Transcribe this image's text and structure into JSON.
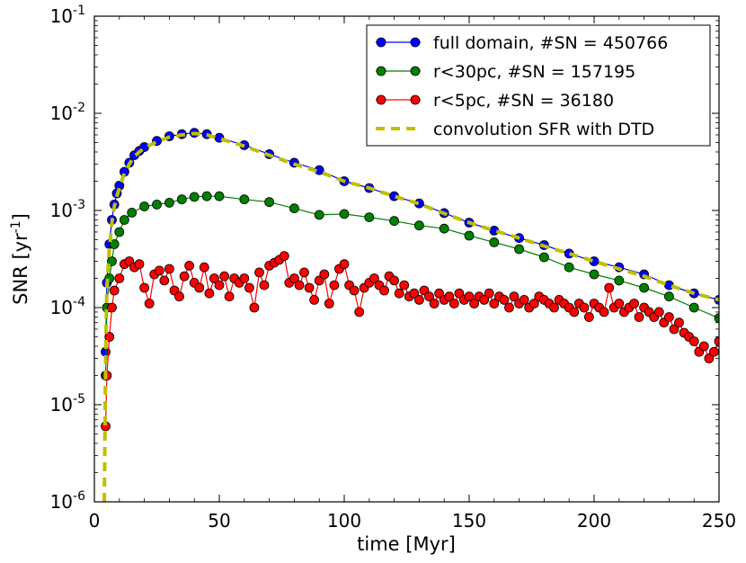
{
  "chart_data": {
    "type": "line",
    "xlabel": "time [Myr]",
    "ylabel": "SNR [yr",
    "ylabel_sup": "-1",
    "ylabel_end": "]",
    "xlim": [
      0,
      250
    ],
    "ylim": [
      1e-06,
      0.1
    ],
    "yscale": "log",
    "x_ticks": [
      0,
      50,
      100,
      150,
      200,
      250
    ],
    "x_tick_labels": [
      "0",
      "50",
      "100",
      "150",
      "200",
      "250"
    ],
    "y_ticks": [
      1e-06,
      1e-05,
      0.0001,
      0.001,
      0.01,
      0.1
    ],
    "y_tick_labels": [
      {
        "base": "10",
        "exp": "-6"
      },
      {
        "base": "10",
        "exp": "-5"
      },
      {
        "base": "10",
        "exp": "-4"
      },
      {
        "base": "10",
        "exp": "-3"
      },
      {
        "base": "10",
        "exp": "-2"
      },
      {
        "base": "10",
        "exp": "-1"
      }
    ],
    "grid": false,
    "legend_position": "top-right",
    "series": [
      {
        "name": "full domain, #SN = 450766",
        "color": "#0000ff",
        "marker": "circle",
        "x": [
          4.5,
          5,
          6,
          7,
          8,
          9,
          10,
          12,
          14,
          16,
          18,
          20,
          25,
          30,
          35,
          40,
          45,
          50,
          60,
          70,
          80,
          90,
          100,
          110,
          120,
          130,
          140,
          150,
          160,
          170,
          180,
          190,
          200,
          210,
          220,
          230,
          240,
          250
        ],
        "y": [
          3.5e-05,
          0.00018,
          0.00045,
          0.0008,
          0.00115,
          0.0015,
          0.0018,
          0.0025,
          0.0031,
          0.0037,
          0.0041,
          0.0045,
          0.0052,
          0.0058,
          0.0061,
          0.0063,
          0.0061,
          0.0056,
          0.0047,
          0.0038,
          0.0031,
          0.0026,
          0.002,
          0.0017,
          0.0014,
          0.00118,
          0.00094,
          0.00075,
          0.00062,
          0.00052,
          0.00044,
          0.00036,
          0.0003,
          0.00026,
          0.00022,
          0.00017,
          0.00014,
          0.00012
        ]
      },
      {
        "name": "r<30pc, #SN = 157195",
        "color": "#008000",
        "marker": "circle",
        "x": [
          4.5,
          5,
          6,
          7,
          8,
          10,
          12,
          15,
          20,
          25,
          30,
          35,
          40,
          45,
          50,
          60,
          70,
          80,
          90,
          100,
          110,
          120,
          130,
          140,
          150,
          160,
          170,
          180,
          190,
          200,
          210,
          220,
          230,
          240,
          250
        ],
        "y": [
          2e-05,
          0.0001,
          0.0002,
          0.0003,
          0.00045,
          0.0006,
          0.0008,
          0.00095,
          0.0011,
          0.00115,
          0.0012,
          0.0013,
          0.00138,
          0.0014,
          0.0014,
          0.0013,
          0.00122,
          0.00105,
          0.0009,
          0.00092,
          0.00085,
          0.00078,
          0.0007,
          0.00065,
          0.00055,
          0.00047,
          0.0004,
          0.00033,
          0.00026,
          0.00022,
          0.00019,
          0.00016,
          0.00013,
          0.0001,
          7.8e-05
        ]
      },
      {
        "name": "r<5pc, #SN = 36180",
        "color": "#ff0000",
        "marker": "circle",
        "x": [
          4.5,
          5,
          6,
          7,
          8,
          10,
          12,
          14,
          16,
          18,
          20,
          22,
          24,
          26,
          28,
          30,
          32,
          34,
          36,
          38,
          40,
          42,
          44,
          46,
          48,
          50,
          52,
          54,
          56,
          58,
          60,
          62,
          64,
          66,
          68,
          70,
          72,
          74,
          76,
          78,
          80,
          82,
          84,
          86,
          88,
          90,
          92,
          94,
          96,
          98,
          100,
          102,
          104,
          106,
          108,
          110,
          112,
          114,
          116,
          118,
          120,
          122,
          124,
          126,
          128,
          130,
          132,
          134,
          136,
          138,
          140,
          142,
          144,
          146,
          148,
          150,
          152,
          154,
          156,
          158,
          160,
          162,
          164,
          166,
          168,
          170,
          172,
          174,
          176,
          178,
          180,
          182,
          184,
          186,
          188,
          190,
          192,
          194,
          196,
          198,
          200,
          202,
          204,
          206,
          208,
          210,
          212,
          214,
          216,
          218,
          220,
          222,
          224,
          226,
          228,
          230,
          232,
          234,
          236,
          238,
          240,
          242,
          244,
          246,
          248,
          250
        ],
        "y": [
          6e-06,
          2e-05,
          5e-05,
          0.0001,
          0.00015,
          0.0002,
          0.00028,
          0.0003,
          0.00026,
          0.00028,
          0.00016,
          0.00011,
          0.00022,
          0.00024,
          0.00019,
          0.00025,
          0.00015,
          0.00013,
          0.00021,
          0.00027,
          0.00018,
          0.00016,
          0.00026,
          0.00014,
          0.0002,
          0.00017,
          0.00021,
          0.00013,
          0.0002,
          0.00018,
          0.0002,
          0.00016,
          0.0001,
          0.00023,
          0.00017,
          0.00027,
          0.00029,
          0.00031,
          0.00034,
          0.00018,
          0.0002,
          0.00017,
          0.00023,
          0.00016,
          0.00012,
          0.00019,
          0.00022,
          0.00011,
          0.00017,
          0.00025,
          0.00028,
          0.00017,
          0.00015,
          9e-05,
          0.00016,
          0.00018,
          0.0002,
          0.00017,
          0.00015,
          0.00021,
          0.00019,
          0.00014,
          0.00017,
          0.00013,
          0.00014,
          0.00012,
          0.00015,
          0.00013,
          0.00011,
          0.00014,
          0.00012,
          0.00013,
          0.00011,
          0.00014,
          0.00012,
          0.00013,
          0.00011,
          0.00013,
          0.00012,
          0.00014,
          0.00011,
          0.00013,
          0.00012,
          0.0001,
          0.00013,
          0.00011,
          0.00012,
          0.0001,
          0.00011,
          0.00013,
          0.00012,
          0.00011,
          0.0001,
          0.00012,
          0.00011,
          0.0001,
          9e-05,
          0.00011,
          0.0001,
          8e-05,
          0.00011,
          0.0001,
          9e-05,
          0.00016,
          0.0001,
          0.00011,
          9e-05,
          0.0001,
          0.00011,
          8e-05,
          0.0001,
          9e-05,
          8e-05,
          9e-05,
          7e-05,
          8e-05,
          6e-05,
          7e-05,
          5.5e-05,
          5e-05,
          4.5e-05,
          3.5e-05,
          4e-05,
          3e-05,
          3.5e-05,
          4.5e-05
        ]
      },
      {
        "name": "convolution SFR with DTD",
        "color": "#bfbf00",
        "marker": "none",
        "dashed": true,
        "x": [
          4,
          4.5,
          5,
          6,
          7,
          8,
          9,
          10,
          12,
          14,
          16,
          18,
          20,
          25,
          30,
          35,
          40,
          45,
          50,
          60,
          70,
          80,
          90,
          100,
          110,
          120,
          130,
          140,
          150,
          160,
          170,
          180,
          190,
          200,
          210,
          220,
          230,
          240,
          250
        ],
        "y": [
          1e-06,
          3e-05,
          0.00016,
          0.0004,
          0.00075,
          0.0011,
          0.0014,
          0.0017,
          0.0024,
          0.003,
          0.0036,
          0.004,
          0.0044,
          0.0051,
          0.0057,
          0.006,
          0.0062,
          0.006,
          0.0055,
          0.0046,
          0.0037,
          0.003,
          0.0025,
          0.002,
          0.0017,
          0.0014,
          0.00117,
          0.00093,
          0.00075,
          0.00062,
          0.00052,
          0.00043,
          0.00036,
          0.0003,
          0.00025,
          0.00021,
          0.00017,
          0.00014,
          0.00012
        ]
      }
    ]
  }
}
